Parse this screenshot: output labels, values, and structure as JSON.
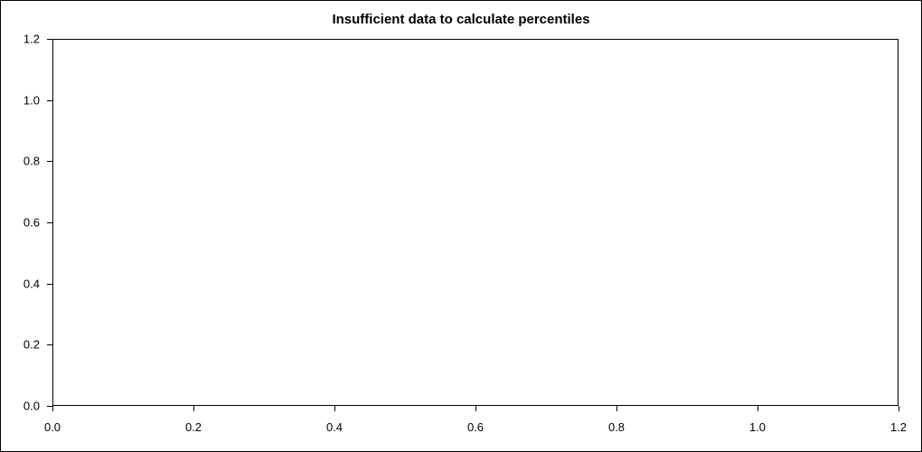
{
  "chart_data": {
    "type": "scatter",
    "title": "Insufficient data to calculate percentiles",
    "xlabel": "",
    "ylabel": "",
    "xlim": [
      0.0,
      1.2
    ],
    "ylim": [
      0.0,
      1.2
    ],
    "x_tick_labels": [
      "0.0",
      "0.2",
      "0.4",
      "0.6",
      "0.8",
      "1.0",
      "1.2"
    ],
    "y_tick_labels": [
      "0.0",
      "0.2",
      "0.4",
      "0.6",
      "0.8",
      "1.0",
      "1.2"
    ],
    "x": [],
    "y": [],
    "series": [],
    "grid": false,
    "legend": false
  }
}
